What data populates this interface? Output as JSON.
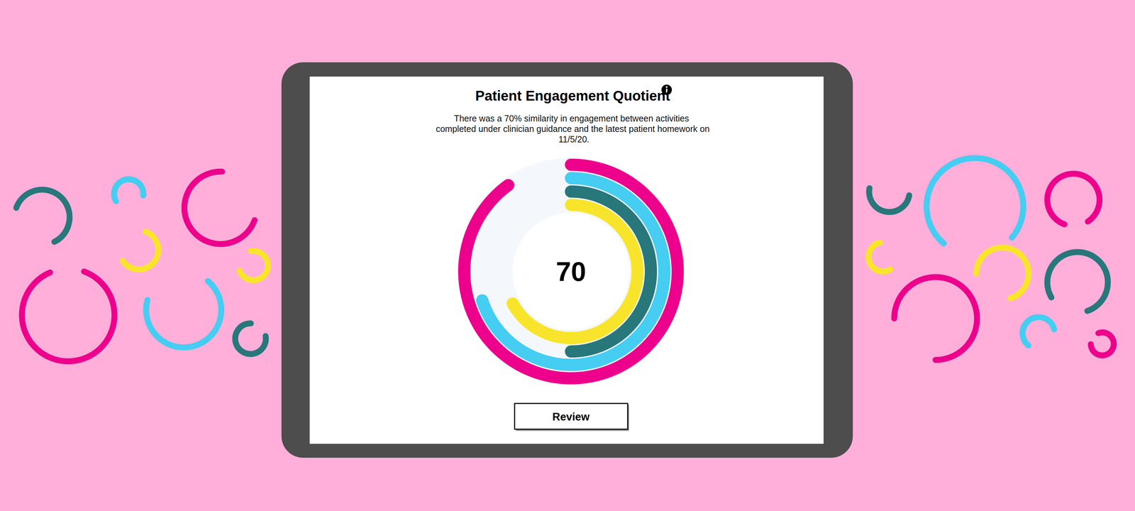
{
  "chart_data": {
    "type": "radial_bar",
    "title": "Patient Engagement Quotient",
    "subtitle": "There was a 70% similarity in engagement between activities completed under clinician guidance and the latest patient homework on 11/5/20.",
    "center_value": 70,
    "button": "Review",
    "values": [
      90,
      70,
      50,
      67
    ],
    "colors": [
      "#ec008c",
      "#45cdf2",
      "#27777b",
      "#f8e52b"
    ],
    "ylim": [
      0,
      100
    ],
    "tick_labels": false
  }
}
